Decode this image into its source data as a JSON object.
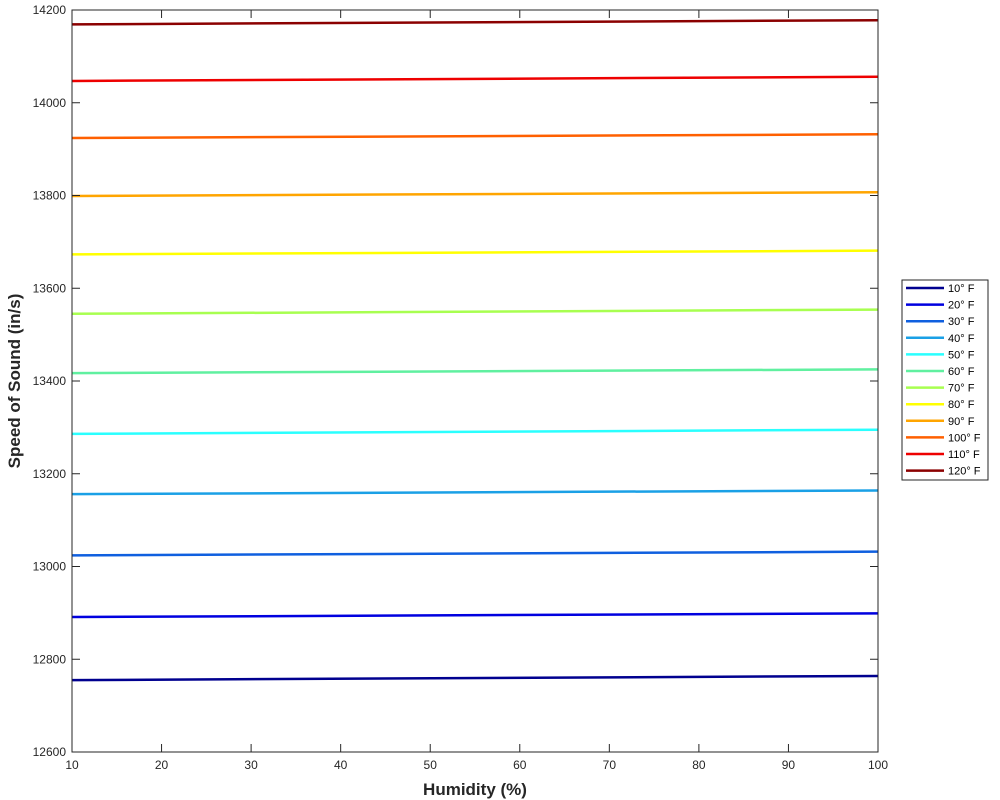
{
  "chart_data": {
    "type": "line",
    "title": "",
    "xlabel": "Humidity (%)",
    "ylabel": "Speed of Sound (in/s)",
    "xlim": [
      10,
      100
    ],
    "ylim": [
      12600,
      14200
    ],
    "xticks": [
      10,
      20,
      30,
      40,
      50,
      60,
      70,
      80,
      90,
      100
    ],
    "yticks": [
      12600,
      12800,
      13000,
      13200,
      13400,
      13600,
      13800,
      14000,
      14200
    ],
    "grid": false,
    "legend_position": "right",
    "x": [
      10,
      100
    ],
    "series": [
      {
        "name": "10° F",
        "color": "#00008f",
        "values": [
          12755,
          12764
        ]
      },
      {
        "name": "20° F",
        "color": "#0000df",
        "values": [
          12891,
          12899
        ]
      },
      {
        "name": "30° F",
        "color": "#0f5fdf",
        "values": [
          13024,
          13032
        ]
      },
      {
        "name": "40° F",
        "color": "#1aa0e6",
        "values": [
          13156,
          13164
        ]
      },
      {
        "name": "50° F",
        "color": "#2affff",
        "values": [
          13286,
          13295
        ]
      },
      {
        "name": "60° F",
        "color": "#60f0a0",
        "values": [
          13417,
          13425
        ]
      },
      {
        "name": "70° F",
        "color": "#a8ff50",
        "values": [
          13545,
          13554
        ]
      },
      {
        "name": "80° F",
        "color": "#ffff00",
        "values": [
          13673,
          13681
        ]
      },
      {
        "name": "90° F",
        "color": "#ffa500",
        "values": [
          13799,
          13807
        ]
      },
      {
        "name": "100° F",
        "color": "#ff6000",
        "values": [
          13924,
          13932
        ]
      },
      {
        "name": "110° F",
        "color": "#ee0000",
        "values": [
          14047,
          14056
        ]
      },
      {
        "name": "120° F",
        "color": "#8b0000",
        "values": [
          14169,
          14178
        ]
      }
    ]
  }
}
